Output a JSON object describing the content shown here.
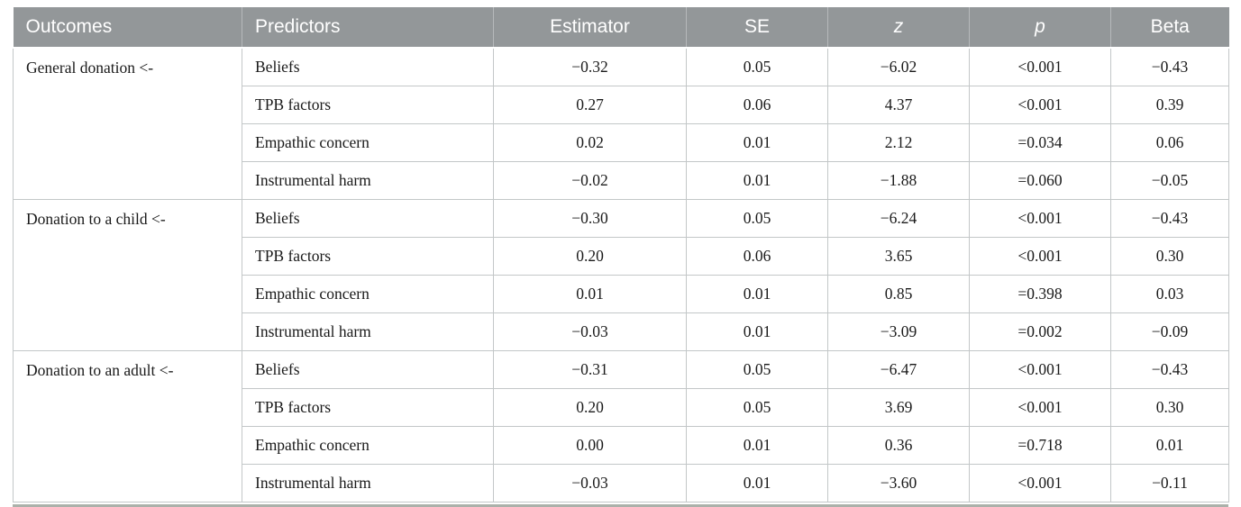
{
  "table": {
    "columns": [
      {
        "label": "Outcomes"
      },
      {
        "label": "Predictors"
      },
      {
        "label": "Estimator"
      },
      {
        "label": "SE"
      },
      {
        "label": "z"
      },
      {
        "label": "p"
      },
      {
        "label": "Beta"
      }
    ],
    "groups": [
      {
        "outcome": "General donation <-",
        "rows": [
          {
            "predictor": "Beliefs",
            "estimator": "−0.32",
            "se": "0.05",
            "z": "−6.02",
            "p": "<0.001",
            "beta": "−0.43"
          },
          {
            "predictor": "TPB factors",
            "estimator": "0.27",
            "se": "0.06",
            "z": "4.37",
            "p": "<0.001",
            "beta": "0.39"
          },
          {
            "predictor": "Empathic concern",
            "estimator": "0.02",
            "se": "0.01",
            "z": "2.12",
            "p": "=0.034",
            "beta": "0.06"
          },
          {
            "predictor": "Instrumental harm",
            "estimator": "−0.02",
            "se": "0.01",
            "z": "−1.88",
            "p": "=0.060",
            "beta": "−0.05"
          }
        ]
      },
      {
        "outcome": "Donation to a child <-",
        "rows": [
          {
            "predictor": "Beliefs",
            "estimator": "−0.30",
            "se": "0.05",
            "z": "−6.24",
            "p": "<0.001",
            "beta": "−0.43"
          },
          {
            "predictor": "TPB factors",
            "estimator": "0.20",
            "se": "0.06",
            "z": "3.65",
            "p": "<0.001",
            "beta": "0.30"
          },
          {
            "predictor": "Empathic concern",
            "estimator": "0.01",
            "se": "0.01",
            "z": "0.85",
            "p": "=0.398",
            "beta": "0.03"
          },
          {
            "predictor": "Instrumental harm",
            "estimator": "−0.03",
            "se": "0.01",
            "z": "−3.09",
            "p": "=0.002",
            "beta": "−0.09"
          }
        ]
      },
      {
        "outcome": "Donation to an adult <-",
        "rows": [
          {
            "predictor": "Beliefs",
            "estimator": "−0.31",
            "se": "0.05",
            "z": "−6.47",
            "p": "<0.001",
            "beta": "−0.43"
          },
          {
            "predictor": "TPB factors",
            "estimator": "0.20",
            "se": "0.05",
            "z": "3.69",
            "p": "<0.001",
            "beta": "0.30"
          },
          {
            "predictor": "Empathic concern",
            "estimator": "0.00",
            "se": "0.01",
            "z": "0.36",
            "p": "=0.718",
            "beta": "0.01"
          },
          {
            "predictor": "Instrumental harm",
            "estimator": "−0.03",
            "se": "0.01",
            "z": "−3.60",
            "p": "<0.001",
            "beta": "−0.11"
          }
        ]
      }
    ]
  },
  "colors": {
    "header_background": "#939799",
    "header_text": "#ffffff",
    "cell_border": "#c3c7c8",
    "bottom_rule": "#abb1aa"
  }
}
